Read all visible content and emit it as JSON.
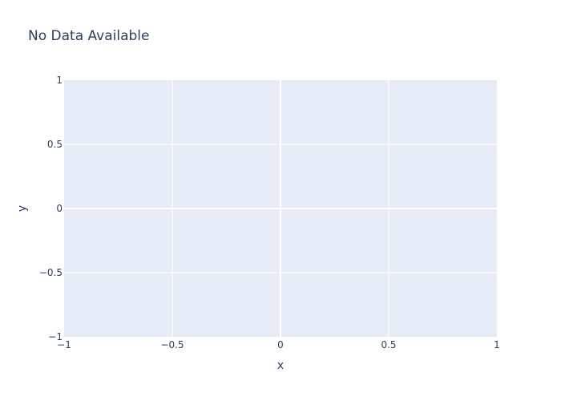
{
  "chart_data": {
    "type": "scatter",
    "title": "No Data Available",
    "xlabel": "x",
    "ylabel": "y",
    "xlim": [
      -1,
      1
    ],
    "ylim": [
      -1,
      1
    ],
    "x_ticks": [
      -1,
      -0.5,
      0,
      0.5,
      1
    ],
    "y_ticks": [
      -1,
      -0.5,
      0,
      0.5,
      1
    ],
    "x_tick_labels": [
      "−1",
      "−0.5",
      "0",
      "0.5",
      "1"
    ],
    "y_tick_labels": [
      "−1",
      "−0.5",
      "0",
      "0.5",
      "1"
    ],
    "series": [],
    "grid": true,
    "colors": {
      "plot_background": "#e5ecf6",
      "gridline": "#ffffff",
      "text": "#2a3f5f"
    }
  }
}
